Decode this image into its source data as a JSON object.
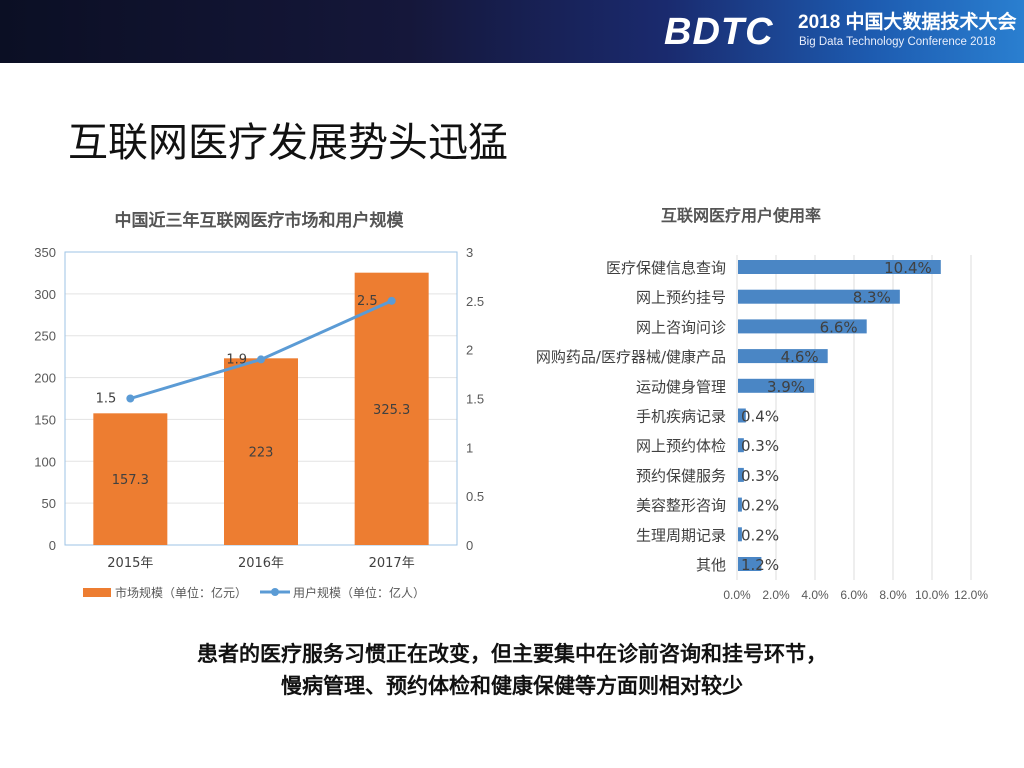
{
  "header": {
    "logo": "BDTC",
    "conference_cn": "2018 中国大数据技术大会",
    "conference_en": "Big Data Technology Conference 2018"
  },
  "slide_title": "互联网医疗发展势头迅猛",
  "notes": [
    "患者的医疗服务习惯正在改变，但主要集中在诊前咨询和挂号环节，",
    "慢病管理、预约体检和健康保健等方面则相对较少"
  ],
  "chart_data": [
    {
      "type": "bar",
      "title": "中国近三年互联网医疗市场和用户规模",
      "categories": [
        "2015年",
        "2016年",
        "2017年"
      ],
      "series": [
        {
          "name": "市场规模（单位：亿元）",
          "type": "bar",
          "axis": "left",
          "values": [
            157.3,
            223,
            325.3
          ],
          "labels": [
            "157.3",
            "223",
            "325.3"
          ],
          "color": "#ed7d31"
        },
        {
          "name": "用户规模（单位：亿人）",
          "type": "line",
          "axis": "right",
          "values": [
            1.5,
            1.9,
            2.5
          ],
          "labels": [
            "1.5",
            "1.9",
            "2.5"
          ],
          "color": "#5b9bd5"
        }
      ],
      "ylim": [
        0,
        350
      ],
      "yticks": [
        "0",
        "50",
        "100",
        "150",
        "200",
        "250",
        "300",
        "350"
      ],
      "y2lim": [
        0,
        3
      ],
      "y2ticks": [
        "0",
        "0.5",
        "1",
        "1.5",
        "2",
        "2.5",
        "3"
      ],
      "grid": true,
      "legend": "bottom"
    },
    {
      "type": "bar",
      "orientation": "horizontal",
      "title": "互联网医疗用户使用率",
      "categories": [
        "医疗保健信息查询",
        "网上预约挂号",
        "网上咨询问诊",
        "网购药品/医疗器械/健康产品",
        "运动健身管理",
        "手机疾病记录",
        "网上预约体检",
        "预约保健服务",
        "美容整形咨询",
        "生理周期记录",
        "其他"
      ],
      "values": [
        10.4,
        8.3,
        6.6,
        4.6,
        3.9,
        0.4,
        0.3,
        0.3,
        0.2,
        0.2,
        1.2
      ],
      "labels": [
        "10.4%",
        "8.3%",
        "6.6%",
        "4.6%",
        "3.9%",
        "0.4%",
        "0.3%",
        "0.3%",
        "0.2%",
        "0.2%",
        "1.2%"
      ],
      "xlim": [
        0,
        12
      ],
      "xticks": [
        "0.0%",
        "2.0%",
        "4.0%",
        "6.0%",
        "8.0%",
        "10.0%",
        "12.0%"
      ],
      "color": "#4a86c5",
      "grid": true
    }
  ]
}
